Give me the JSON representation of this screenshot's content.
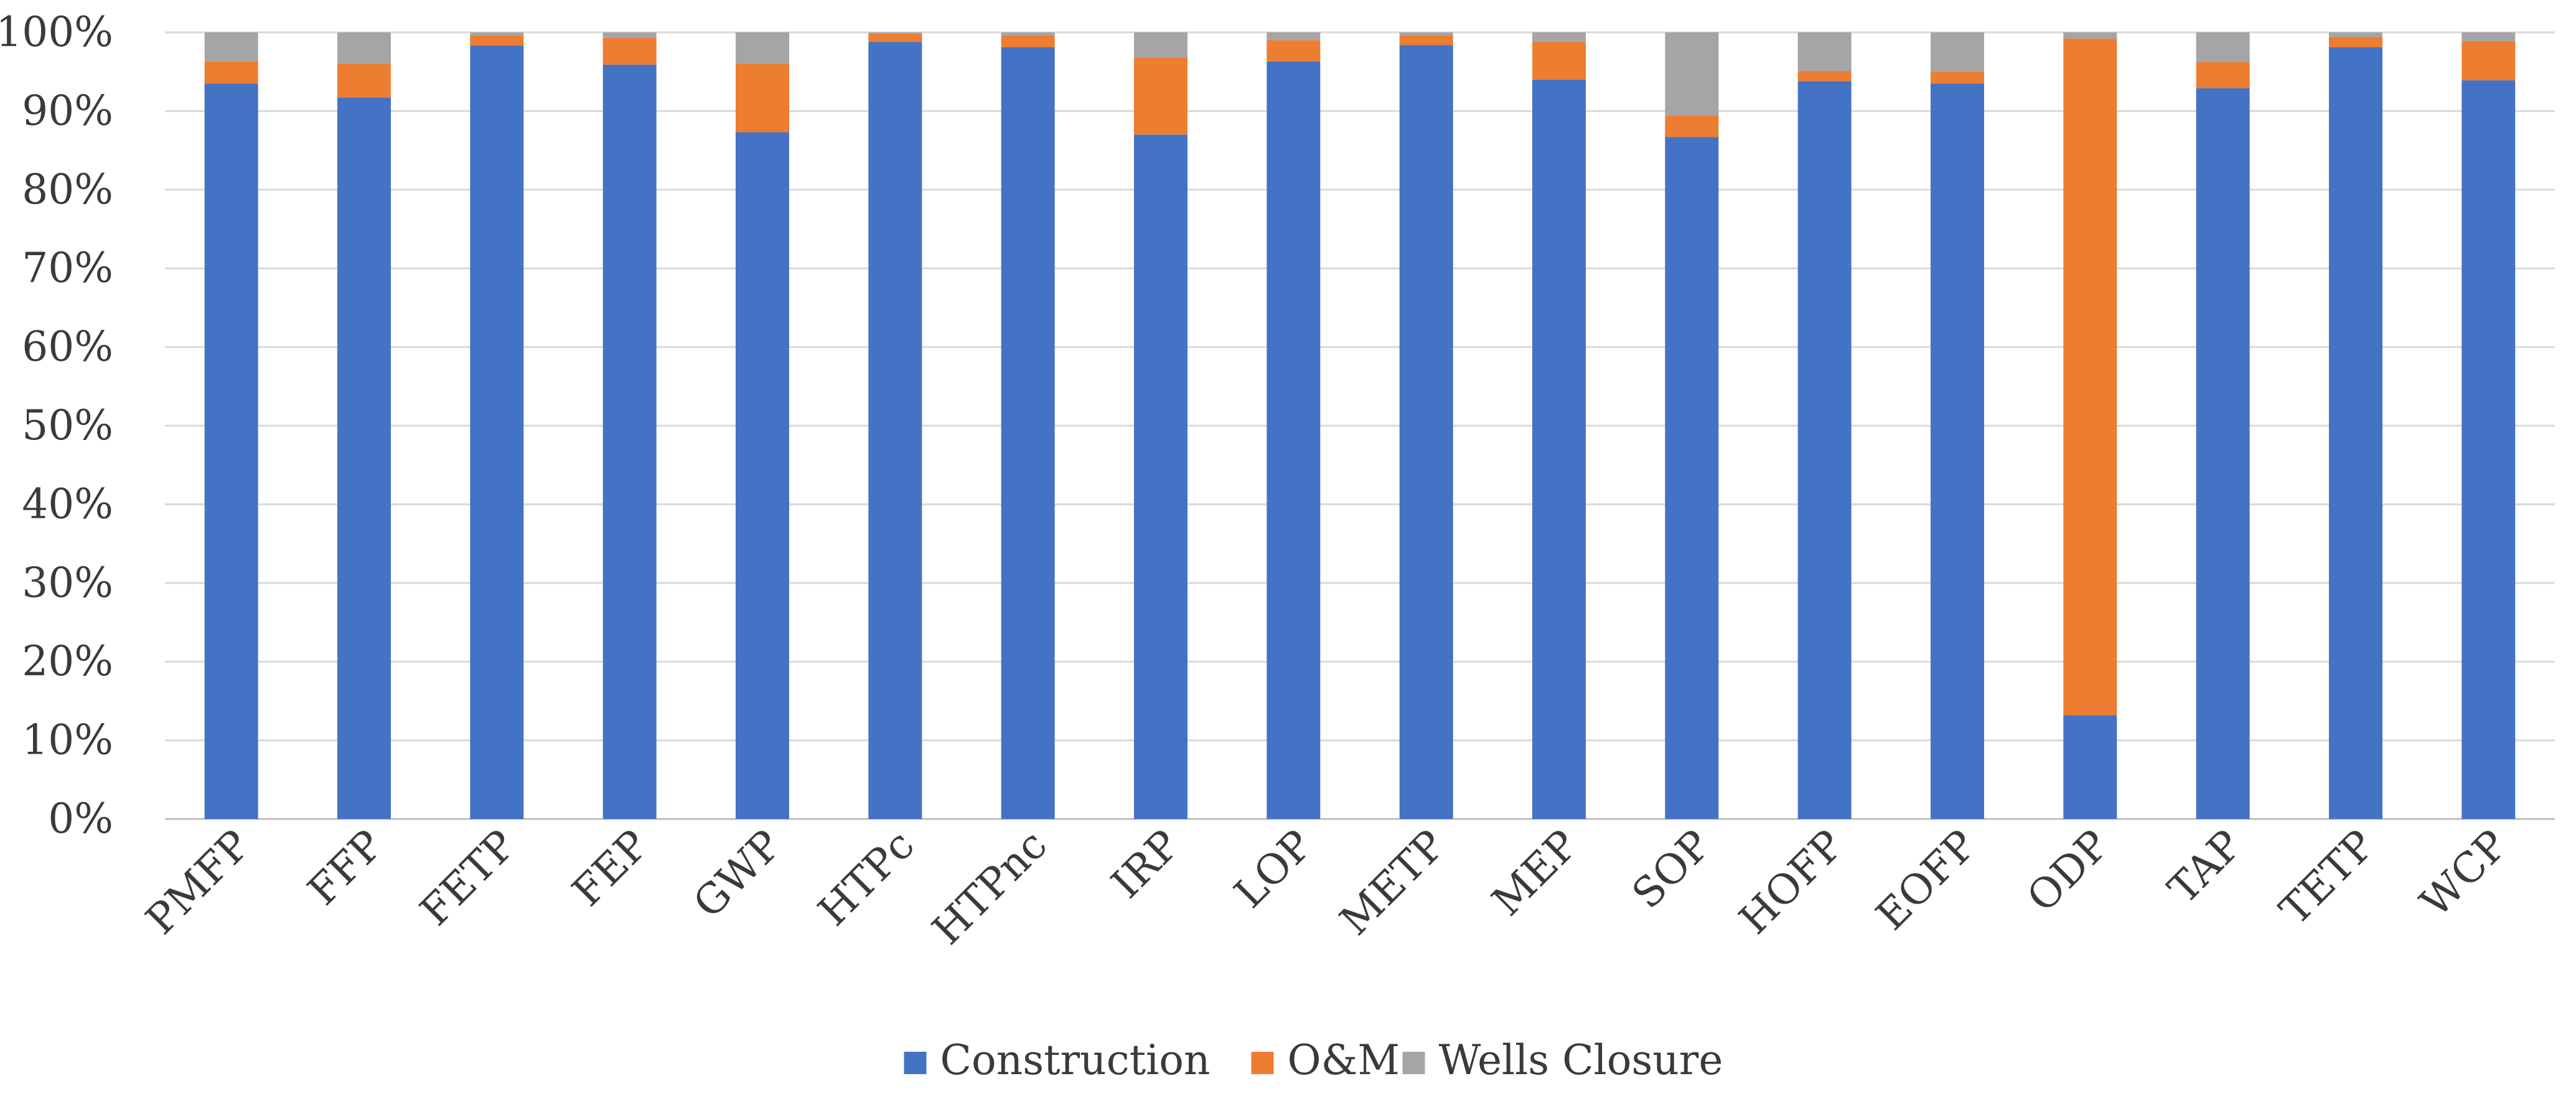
{
  "chart_data": {
    "type": "bar",
    "stacked": true,
    "percent": true,
    "title": "",
    "xlabel": "",
    "ylabel": "",
    "ylim": [
      0,
      100
    ],
    "yticks": [
      "0%",
      "10%",
      "20%",
      "30%",
      "40%",
      "50%",
      "60%",
      "70%",
      "80%",
      "90%",
      "100%"
    ],
    "grid": true,
    "legend_position": "bottom-center",
    "categories": [
      "PMFP",
      "FFP",
      "FETP",
      "FEP",
      "GWP",
      "HTPc",
      "HTPnc",
      "IRP",
      "LOP",
      "METP",
      "MEP",
      "SOP",
      "HOFP",
      "EOFP",
      "ODP",
      "TAP",
      "TETP",
      "WCP"
    ],
    "series": [
      {
        "name": "Construction",
        "color": "#4472C4",
        "values": [
          93.5,
          91.7,
          98.3,
          95.9,
          87.3,
          98.8,
          98.1,
          87.0,
          96.3,
          98.4,
          94.0,
          86.7,
          93.8,
          93.5,
          13.2,
          92.9,
          98.1,
          93.9
        ]
      },
      {
        "name": "O&M",
        "color": "#ED7D31",
        "values": [
          2.8,
          4.3,
          1.3,
          3.4,
          8.7,
          1.0,
          1.5,
          9.8,
          2.7,
          1.2,
          4.8,
          2.7,
          1.3,
          1.5,
          86.0,
          3.3,
          1.3,
          5.0
        ]
      },
      {
        "name": "Wells Closure",
        "color": "#A5A5A5",
        "values": [
          3.7,
          4.0,
          0.4,
          0.7,
          4.0,
          0.2,
          0.4,
          3.2,
          1.0,
          0.4,
          1.2,
          10.6,
          4.9,
          5.0,
          0.8,
          3.8,
          0.6,
          1.1
        ]
      }
    ]
  }
}
